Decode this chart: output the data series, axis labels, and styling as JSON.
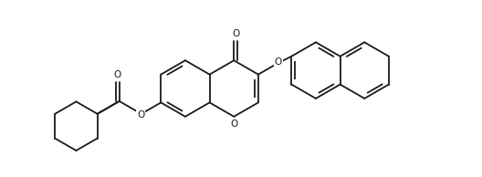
{
  "background_color": "#ffffff",
  "line_color": "#1a1a1a",
  "line_width": 1.3,
  "figsize": [
    5.28,
    1.94
  ],
  "dpi": 100,
  "xlim": [
    0,
    10.56
  ],
  "ylim": [
    0,
    3.88
  ]
}
